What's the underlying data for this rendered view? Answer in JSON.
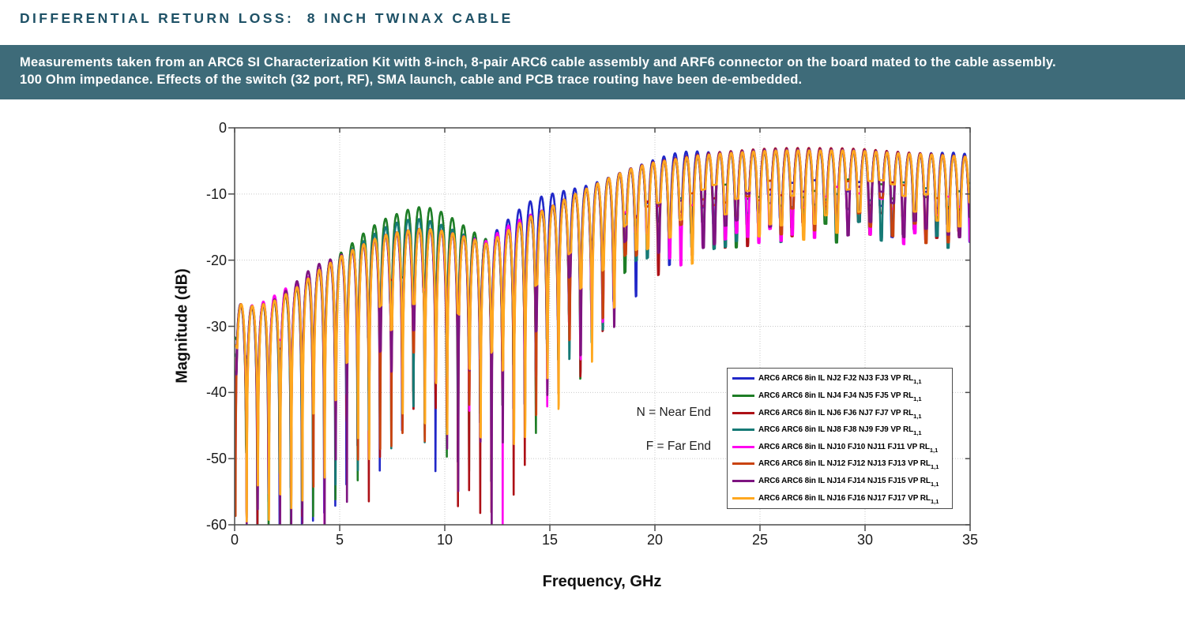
{
  "page": {
    "title": "DIFFERENTIAL RETURN LOSS:  8 INCH TWINAX CABLE",
    "title_color": "#1e5166",
    "banner": {
      "bg_color": "#3e6b79",
      "text_color": "#ffffff",
      "line1": "Measurements taken from an ARC6 SI Characterization Kit with 8-inch, 8-pair ARC6 cable assembly and ARF6 connector on the board mated to the cable assembly.",
      "line2": "100 Ohm impedance. Effects of the switch (32 port, RF), SMA launch, cable and PCB trace routing have been de-embedded."
    }
  },
  "chart_data": {
    "type": "line",
    "title": "",
    "xlabel": "Frequency, GHz",
    "ylabel": "Magnitude (dB)",
    "xlim": [
      0,
      35
    ],
    "ylim": [
      -60,
      0
    ],
    "xticks": [
      0,
      5,
      10,
      15,
      20,
      25,
      30,
      35
    ],
    "yticks": [
      0,
      -10,
      -20,
      -30,
      -40,
      -50,
      -60
    ],
    "grid": true,
    "grid_color": "#c9c9c9",
    "axis_color": "#4c4c4c",
    "legend_position": "inside-lower-right",
    "annotations": [
      {
        "id": "near",
        "text": "N = Near End"
      },
      {
        "id": "far",
        "text": "F = Far End"
      }
    ],
    "series": [
      {
        "label": "ARC6 ARC6 8in IL NJ2 FJ2 NJ3 FJ3 VP RL",
        "sub": "1,1",
        "color": "#2128c8",
        "seed": 1,
        "f0": 0.02,
        "bumps": [
          {
            "c": 14.2,
            "w": 2.0,
            "a": 2.3
          },
          {
            "c": 21.2,
            "w": 1.4,
            "a": 0.9
          },
          {
            "c": 34.3,
            "w": 1.2,
            "a": 0.5
          }
        ]
      },
      {
        "label": "ARC6 ARC6 8in IL NJ4 FJ4 NJ5 FJ5 VP RL",
        "sub": "1,1",
        "color": "#1e7d26",
        "seed": 2,
        "f0": 0.024,
        "bumps": [
          {
            "c": 8.9,
            "w": 2.4,
            "a": 3.3
          },
          {
            "c": 6.3,
            "w": 1.2,
            "a": 0.8
          }
        ]
      },
      {
        "label": "ARC6 ARC6 8in IL NJ6 FJ6 NJ7 FJ7 VP RL",
        "sub": "1,1",
        "color": "#ad1016",
        "seed": 3,
        "f0": 0.028,
        "bumps": [
          {
            "c": 27.0,
            "w": 6.0,
            "a": 0.35
          }
        ]
      },
      {
        "label": "ARC6 ARC6 8in IL NJ8 FJ8 NJ9 FJ9 VP RL",
        "sub": "1,1",
        "color": "#167a76",
        "seed": 4,
        "f0": 0.032,
        "bumps": [
          {
            "c": 8.3,
            "w": 2.0,
            "a": 1.6
          }
        ]
      },
      {
        "label": "ARC6 ARC6 8in IL NJ10 FJ10 NJ11 FJ11 VP RL",
        "sub": "1,1",
        "color": "#ff00f0",
        "seed": 5,
        "f0": 0.036,
        "bumps": [
          {
            "c": 2.3,
            "w": 1.0,
            "a": 0.9
          },
          {
            "c": 12.9,
            "w": 1.2,
            "a": 0.7
          }
        ]
      },
      {
        "label": "ARC6 ARC6 8in IL NJ12 FJ12 NJ13 FJ13 VP RL",
        "sub": "1,1",
        "color": "#c9430f",
        "seed": 6,
        "f0": 0.04,
        "bumps": []
      },
      {
        "label": "ARC6 ARC6 8in IL NJ14 FJ14 NJ15 FJ15 VP RL",
        "sub": "1,1",
        "color": "#7d1480",
        "seed": 7,
        "f0": 0.044,
        "bumps": [
          {
            "c": 3.5,
            "w": 1.2,
            "a": 1.1
          },
          {
            "c": 26.0,
            "w": 7.0,
            "a": 0.2
          }
        ]
      },
      {
        "label": "ARC6 ARC6 8in IL NJ16 FJ16 NJ17 FJ17 VP RL",
        "sub": "1,1",
        "color": "#ffa81f",
        "seed": 8,
        "f0": 0.048,
        "bumps": []
      }
    ],
    "model": {
      "description": "Return-loss resonance comb: RL(f) = peak_envelope(f) + 20*log10(max(|sin(pi*(f-f0)/period)|, null_floor)); null depths jittered per resonance null, clipped at -60 dB.",
      "period_ghz": 0.53,
      "envelope_f": [
        0,
        1,
        2,
        3,
        4,
        5,
        6,
        7,
        8,
        9,
        10,
        11,
        12,
        13,
        14,
        15,
        16,
        17,
        18,
        19,
        20,
        21,
        22,
        23,
        24,
        25,
        26,
        27,
        28,
        29,
        30,
        31,
        32,
        33,
        34,
        35
      ],
      "peak_envelope_db": [
        -26.5,
        -27,
        -26,
        -24,
        -21.5,
        -19.5,
        -17.8,
        -16.3,
        -15.6,
        -15.2,
        -15.6,
        -16.5,
        -17.5,
        -15.5,
        -13.5,
        -12,
        -10.3,
        -8.8,
        -7.3,
        -6,
        -5.2,
        -4.7,
        -4.2,
        -3.9,
        -3.7,
        -3.5,
        -3.4,
        -3.4,
        -3.4,
        -3.4,
        -3.5,
        -3.7,
        -3.9,
        -4,
        -4.2,
        -4.4
      ],
      "null_envelope_db": [
        -46,
        -52,
        -50,
        -52,
        -50,
        -46,
        -42,
        -38,
        -36,
        -36,
        -40,
        -44,
        -50,
        -42,
        -38,
        -34,
        -30,
        -26,
        -22,
        -18.5,
        -16.5,
        -15.5,
        -14.5,
        -13.5,
        -13,
        -13,
        -12.5,
        -12.5,
        -12.5,
        -12.5,
        -12,
        -12.5,
        -13,
        -13,
        -13,
        -13
      ]
    }
  }
}
